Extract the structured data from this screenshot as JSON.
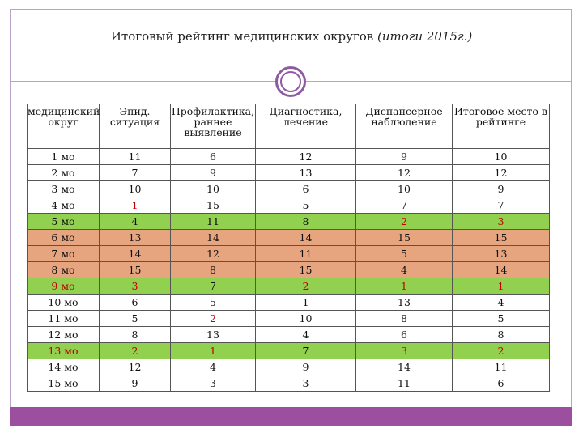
{
  "title": {
    "main": "Итоговый рейтинг медицинских округов",
    "sub": "(итоги 2015г.)"
  },
  "table": {
    "headers": [
      "медицинский округ",
      "Эпид. ситуация",
      "Профилактика, раннее выявление",
      "Диагностика, лечение",
      "Диспансерное наблюдение",
      "Итоговое место в рейтинге"
    ],
    "rows": [
      {
        "cells": [
          "1 мо",
          "11",
          "6",
          "12",
          "9",
          "10"
        ],
        "style": ""
      },
      {
        "cells": [
          "2 мо",
          "7",
          "9",
          "13",
          "12",
          "12"
        ],
        "style": ""
      },
      {
        "cells": [
          "3 мо",
          "10",
          "10",
          "6",
          "10",
          "9"
        ],
        "style": ""
      },
      {
        "cells": [
          "4 мо",
          "1",
          "15",
          "5",
          "7",
          "7"
        ],
        "style": ""
      },
      {
        "cells": [
          "5 мо",
          "4",
          "11",
          "8",
          "2",
          "3"
        ],
        "style": "green"
      },
      {
        "cells": [
          "6 мо",
          "13",
          "14",
          "14",
          "15",
          "15"
        ],
        "style": "orange"
      },
      {
        "cells": [
          "7 мо",
          "14",
          "12",
          "11",
          "5",
          "13"
        ],
        "style": "orange"
      },
      {
        "cells": [
          "8 мо",
          "15",
          "8",
          "15",
          "4",
          "14"
        ],
        "style": "orange"
      },
      {
        "cells": [
          "9 мо",
          "3",
          "7",
          "2",
          "1",
          "1"
        ],
        "style": "green"
      },
      {
        "cells": [
          "10 мо",
          "6",
          "5",
          "1",
          "13",
          "4"
        ],
        "style": ""
      },
      {
        "cells": [
          "11 мо",
          "5",
          "2",
          "10",
          "8",
          "5"
        ],
        "style": ""
      },
      {
        "cells": [
          "12 мо",
          "8",
          "13",
          "4",
          "6",
          "8"
        ],
        "style": ""
      },
      {
        "cells": [
          "13 мо",
          "2",
          "1",
          "7",
          "3",
          "2"
        ],
        "style": "green"
      },
      {
        "cells": [
          "14 мо",
          "12",
          "4",
          "9",
          "14",
          "11"
        ],
        "style": ""
      },
      {
        "cells": [
          "15 мо",
          "9",
          "3",
          "3",
          "11",
          "6"
        ],
        "style": ""
      }
    ],
    "red_cells": [
      [
        3,
        1
      ],
      [
        4,
        4
      ],
      [
        4,
        5
      ],
      [
        8,
        0
      ],
      [
        8,
        1
      ],
      [
        8,
        3
      ],
      [
        8,
        4
      ],
      [
        8,
        5
      ],
      [
        10,
        2
      ],
      [
        12,
        0
      ],
      [
        12,
        1
      ],
      [
        12,
        2
      ],
      [
        12,
        4
      ],
      [
        12,
        5
      ]
    ]
  },
  "colors": {
    "accent": "#9d4f9f",
    "green_row": "#92d050",
    "orange_row": "#e6a57e",
    "red_text": "#c00000"
  }
}
